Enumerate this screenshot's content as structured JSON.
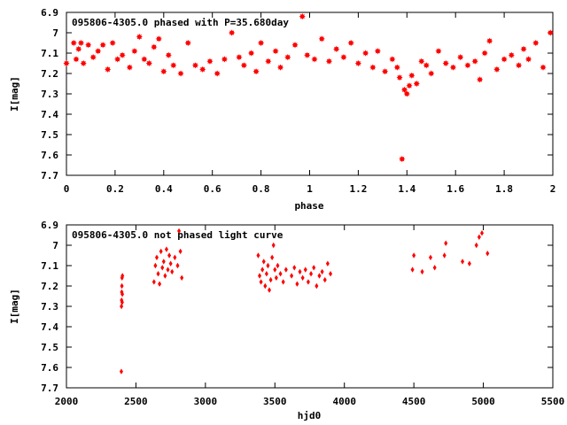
{
  "chart_data": [
    {
      "type": "scatter",
      "title": "095806-4305.0 phased with P=35.680day",
      "xlabel": "phase",
      "ylabel": "I[mag]",
      "xlim": [
        0,
        2
      ],
      "ylim": [
        7.7,
        6.9
      ],
      "y_inverted": true,
      "xticks": [
        0,
        0.2,
        0.4,
        0.6,
        0.8,
        1,
        1.2,
        1.4,
        1.6,
        1.8,
        2
      ],
      "yticks": [
        6.9,
        7,
        7.1,
        7.2,
        7.3,
        7.4,
        7.5,
        7.6,
        7.7
      ],
      "xtick_labels": [
        "0",
        "0.2",
        "0.4",
        "0.6",
        "0.8",
        "1",
        "1.2",
        "1.4",
        "1.6",
        "1.8",
        "2"
      ],
      "ytick_labels": [
        "6.9",
        "7",
        "7.1",
        "7.2",
        "7.3",
        "7.4",
        "7.5",
        "7.6",
        "7.7"
      ],
      "grid": false,
      "color": "#ff0000",
      "marker": "star",
      "series": [
        {
          "x": [
            0.0,
            0.03,
            0.04,
            0.05,
            0.06,
            0.07,
            0.09,
            0.11,
            0.13,
            0.15,
            0.17,
            0.19,
            0.21,
            0.23,
            0.26,
            0.28,
            0.3,
            0.32,
            0.34,
            0.36,
            0.38,
            0.4,
            0.42,
            0.44,
            0.47,
            0.5,
            0.53,
            0.56,
            0.59,
            0.62,
            0.65,
            0.68,
            0.71,
            0.73,
            0.76,
            0.78,
            0.8,
            0.83,
            0.86,
            0.88,
            0.91,
            0.94,
            0.97,
            0.99,
            1.02,
            1.05,
            1.08,
            1.11,
            1.14,
            1.17,
            1.2,
            1.23,
            1.26,
            1.28,
            1.31,
            1.34,
            1.36,
            1.37,
            1.38,
            1.39,
            1.4,
            1.41,
            1.42,
            1.44,
            1.46,
            1.48,
            1.5,
            1.53,
            1.56,
            1.59,
            1.62,
            1.65,
            1.68,
            1.7,
            1.72,
            1.74,
            1.77,
            1.8,
            1.83,
            1.86,
            1.88,
            1.9,
            1.93,
            1.96,
            1.99
          ],
          "y": [
            7.15,
            7.05,
            7.13,
            7.08,
            7.05,
            7.15,
            7.06,
            7.12,
            7.09,
            7.06,
            7.18,
            7.05,
            7.13,
            7.11,
            7.17,
            7.09,
            7.02,
            7.13,
            7.15,
            7.07,
            7.03,
            7.19,
            7.11,
            7.16,
            7.2,
            7.05,
            7.16,
            7.18,
            7.14,
            7.2,
            7.13,
            7.0,
            7.12,
            7.16,
            7.1,
            7.19,
            7.05,
            7.14,
            7.09,
            7.17,
            7.12,
            7.06,
            6.92,
            7.11,
            7.13,
            7.03,
            7.14,
            7.08,
            7.12,
            7.05,
            7.15,
            7.1,
            7.17,
            7.09,
            7.19,
            7.13,
            7.17,
            7.22,
            7.62,
            7.28,
            7.3,
            7.26,
            7.21,
            7.25,
            7.14,
            7.16,
            7.2,
            7.09,
            7.15,
            7.17,
            7.12,
            7.16,
            7.14,
            7.23,
            7.1,
            7.04,
            7.18,
            7.13,
            7.11,
            7.16,
            7.08,
            7.13,
            7.05,
            7.17,
            7.0
          ]
        }
      ]
    },
    {
      "type": "scatter",
      "title": "095806-4305.0 not phased light curve",
      "xlabel": "hjd0",
      "ylabel": "I[mag]",
      "xlim": [
        2000,
        5500
      ],
      "ylim": [
        7.7,
        6.9
      ],
      "y_inverted": true,
      "xticks": [
        2000,
        2500,
        3000,
        3500,
        4000,
        4500,
        5000,
        5500
      ],
      "yticks": [
        6.9,
        7,
        7.1,
        7.2,
        7.3,
        7.4,
        7.5,
        7.6,
        7.7
      ],
      "xtick_labels": [
        "2000",
        "2500",
        "3000",
        "3500",
        "4000",
        "4500",
        "5000",
        "5500"
      ],
      "ytick_labels": [
        "6.9",
        "7",
        "7.1",
        "7.2",
        "7.3",
        "7.4",
        "7.5",
        "7.6",
        "7.7"
      ],
      "grid": false,
      "color": "#ff0000",
      "marker": "diamond",
      "series": [
        {
          "x": [
            2395,
            2396,
            2397,
            2398,
            2399,
            2400,
            2401,
            2402,
            2403,
            2630,
            2640,
            2650,
            2660,
            2670,
            2680,
            2690,
            2700,
            2710,
            2720,
            2730,
            2740,
            2750,
            2760,
            2780,
            2800,
            2810,
            2820,
            2830,
            3380,
            3390,
            3400,
            3410,
            3420,
            3430,
            3440,
            3450,
            3460,
            3470,
            3480,
            3490,
            3500,
            3510,
            3520,
            3540,
            3560,
            3580,
            3620,
            3640,
            3660,
            3680,
            3700,
            3720,
            3740,
            3760,
            3780,
            3800,
            3820,
            3840,
            3860,
            3880,
            3900,
            4490,
            4500,
            4560,
            4620,
            4650,
            4720,
            4730,
            4850,
            4900,
            4950,
            4970,
            4990,
            5030
          ],
          "y": [
            7.62,
            7.3,
            7.27,
            7.23,
            7.2,
            7.16,
            7.28,
            7.24,
            7.15,
            7.18,
            7.1,
            7.06,
            7.14,
            7.19,
            7.03,
            7.11,
            7.08,
            7.15,
            7.02,
            7.12,
            7.05,
            7.09,
            7.13,
            7.06,
            7.1,
            6.93,
            7.03,
            7.16,
            7.05,
            7.15,
            7.18,
            7.12,
            7.08,
            7.2,
            7.14,
            7.1,
            7.22,
            7.17,
            7.06,
            7.0,
            7.12,
            7.16,
            7.1,
            7.14,
            7.18,
            7.12,
            7.15,
            7.11,
            7.19,
            7.13,
            7.16,
            7.12,
            7.18,
            7.14,
            7.11,
            7.2,
            7.15,
            7.13,
            7.17,
            7.09,
            7.14,
            7.12,
            7.05,
            7.13,
            7.06,
            7.11,
            7.05,
            6.99,
            7.08,
            7.09,
            7.0,
            6.96,
            6.94,
            7.04
          ]
        }
      ]
    }
  ]
}
